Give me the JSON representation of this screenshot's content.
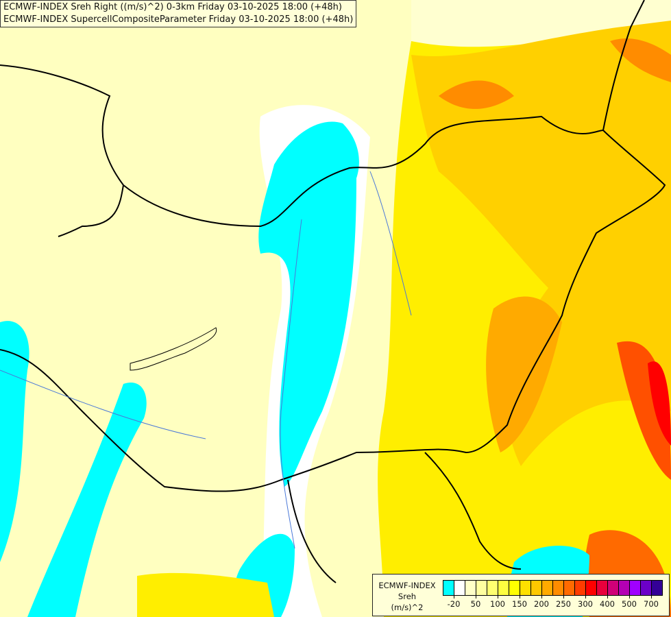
{
  "title": {
    "line1": "ECMWF-INDEX Sreh Right ((m/s)^2) 0-3km Friday 03-10-2025 18:00 (+48h)",
    "line2": "ECMWF-INDEX SupercellCompositeParameter Friday 03-10-2025 18:00 (+48h)"
  },
  "legend": {
    "model": "ECMWF-INDEX",
    "variable": "Sreh",
    "unit": "(m/s)^2",
    "colors": [
      "#00ffff",
      "#ffffff",
      "#ffffc8",
      "#ffffa0",
      "#ffff70",
      "#ffff40",
      "#ffff00",
      "#ffe000",
      "#ffc800",
      "#ffaa00",
      "#ff8c00",
      "#ff6a00",
      "#ff3c00",
      "#ff0000",
      "#e8003c",
      "#d00078",
      "#b400b4",
      "#a000ff",
      "#6c00c8",
      "#340096",
      "#00007c"
    ],
    "ticks": [
      "-20",
      "50",
      "100",
      "150",
      "200",
      "250",
      "300",
      "400",
      "500",
      "700"
    ]
  }
}
